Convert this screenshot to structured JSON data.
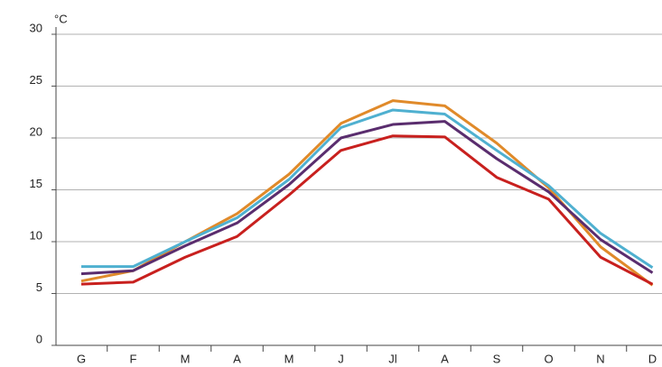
{
  "chart_data": {
    "type": "line",
    "y_unit": "°C",
    "categories": [
      "G",
      "F",
      "M",
      "A",
      "M",
      "J",
      "Jl",
      "A",
      "S",
      "O",
      "N",
      "D"
    ],
    "series": [
      {
        "color": "#e08a2a",
        "values": [
          6.2,
          7.2,
          10,
          12.7,
          16.5,
          21.4,
          23.6,
          23.1,
          19.5,
          15.2,
          9.5,
          5.8
        ]
      },
      {
        "color": "#4fb0d0",
        "values": [
          7.6,
          7.6,
          10,
          12.3,
          16,
          21,
          22.7,
          22.3,
          18.8,
          15.4,
          10.8,
          7.5
        ]
      },
      {
        "color": "#5a2d6e",
        "values": [
          6.9,
          7.2,
          9.6,
          11.8,
          15.5,
          20,
          21.3,
          21.6,
          18,
          14.8,
          10.2,
          7
        ]
      },
      {
        "color": "#c8201e",
        "values": [
          5.9,
          6.1,
          8.5,
          10.5,
          14.5,
          18.8,
          20.2,
          20.1,
          16.2,
          14.1,
          8.5,
          5.9
        ]
      }
    ],
    "ylim": [
      0,
      30
    ],
    "yticks": [
      0,
      5,
      10,
      15,
      20,
      25,
      30
    ],
    "grid": true
  }
}
